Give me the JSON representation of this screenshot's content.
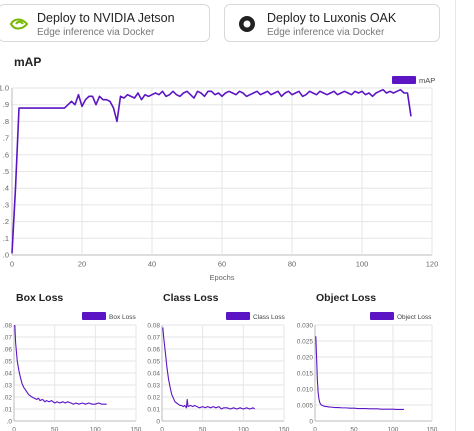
{
  "cards": [
    {
      "title": "Deploy to NVIDIA Jetson",
      "subtitle": "Edge inference via Docker",
      "icon": "nvidia-icon"
    },
    {
      "title": "Deploy to Luxonis OAK",
      "subtitle": "Edge inference via Docker",
      "icon": "luxonis-icon"
    }
  ],
  "colors": {
    "series": "#5b15c4"
  },
  "chart_data": [
    {
      "type": "line",
      "title": "mAP",
      "xlabel": "Epochs",
      "ylabel": "",
      "legend": "top-right",
      "grid": true,
      "xlim": [
        0,
        120
      ],
      "ylim": [
        0,
        1.0
      ],
      "xticks": [
        "0",
        "20",
        "40",
        "60",
        "80",
        "100",
        "120"
      ],
      "yticks": [
        ".0",
        ".1",
        ".2",
        ".3",
        ".4",
        ".5",
        ".6",
        ".7",
        ".8",
        ".9",
        "1.0"
      ],
      "series": [
        {
          "name": "mAP",
          "points": [
            [
              0,
              0.01
            ],
            [
              1,
              0.4
            ],
            [
              2,
              0.88
            ],
            [
              3,
              0.88
            ],
            [
              5,
              0.88
            ],
            [
              8,
              0.88
            ],
            [
              10,
              0.88
            ],
            [
              12,
              0.88
            ],
            [
              14,
              0.88
            ],
            [
              15,
              0.88
            ],
            [
              16,
              0.9
            ],
            [
              17,
              0.92
            ],
            [
              18,
              0.9
            ],
            [
              19,
              0.96
            ],
            [
              20,
              0.89
            ],
            [
              21,
              0.93
            ],
            [
              22,
              0.95
            ],
            [
              23,
              0.95
            ],
            [
              24,
              0.9
            ],
            [
              25,
              0.95
            ],
            [
              26,
              0.93
            ],
            [
              27,
              0.93
            ],
            [
              28,
              0.92
            ],
            [
              29,
              0.88
            ],
            [
              30,
              0.8
            ],
            [
              31,
              0.95
            ],
            [
              32,
              0.94
            ],
            [
              33,
              0.96
            ],
            [
              34,
              0.95
            ],
            [
              35,
              0.94
            ],
            [
              36,
              0.97
            ],
            [
              37,
              0.93
            ],
            [
              38,
              0.96
            ],
            [
              39,
              0.95
            ],
            [
              40,
              0.96
            ],
            [
              41,
              0.97
            ],
            [
              42,
              0.96
            ],
            [
              43,
              0.98
            ],
            [
              44,
              0.95
            ],
            [
              45,
              0.96
            ],
            [
              46,
              0.98
            ],
            [
              47,
              0.96
            ],
            [
              48,
              0.95
            ],
            [
              49,
              0.97
            ],
            [
              50,
              0.98
            ],
            [
              51,
              0.96
            ],
            [
              52,
              0.94
            ],
            [
              53,
              0.98
            ],
            [
              54,
              0.97
            ],
            [
              55,
              0.95
            ],
            [
              56,
              0.98
            ],
            [
              57,
              0.98
            ],
            [
              58,
              0.96
            ],
            [
              59,
              0.97
            ],
            [
              60,
              0.95
            ],
            [
              61,
              0.97
            ],
            [
              62,
              0.98
            ],
            [
              63,
              0.97
            ],
            [
              64,
              0.96
            ],
            [
              65,
              0.98
            ],
            [
              66,
              0.97
            ],
            [
              67,
              0.95
            ],
            [
              68,
              0.96
            ],
            [
              69,
              0.97
            ],
            [
              70,
              0.98
            ],
            [
              71,
              0.96
            ],
            [
              72,
              0.97
            ],
            [
              73,
              0.98
            ],
            [
              74,
              0.96
            ],
            [
              75,
              0.97
            ],
            [
              76,
              0.98
            ],
            [
              77,
              0.95
            ],
            [
              78,
              0.97
            ],
            [
              79,
              0.98
            ],
            [
              80,
              0.96
            ],
            [
              81,
              0.97
            ],
            [
              82,
              0.98
            ],
            [
              83,
              0.95
            ],
            [
              84,
              0.96
            ],
            [
              85,
              0.98
            ],
            [
              86,
              0.97
            ],
            [
              87,
              0.96
            ],
            [
              88,
              0.98
            ],
            [
              89,
              0.97
            ],
            [
              90,
              0.96
            ],
            [
              91,
              0.97
            ],
            [
              92,
              0.98
            ],
            [
              93,
              0.96
            ],
            [
              94,
              0.97
            ],
            [
              95,
              0.98
            ],
            [
              96,
              0.97
            ],
            [
              97,
              0.96
            ],
            [
              98,
              0.98
            ],
            [
              99,
              0.97
            ],
            [
              100,
              0.98
            ],
            [
              101,
              0.96
            ],
            [
              102,
              0.97
            ],
            [
              103,
              0.95
            ],
            [
              104,
              0.97
            ],
            [
              105,
              0.98
            ],
            [
              106,
              0.99
            ],
            [
              107,
              0.97
            ],
            [
              108,
              0.98
            ],
            [
              109,
              0.97
            ],
            [
              110,
              0.98
            ],
            [
              111,
              0.99
            ],
            [
              112,
              0.97
            ],
            [
              113,
              0.97
            ],
            [
              114,
              0.83
            ]
          ]
        }
      ]
    },
    {
      "type": "line",
      "title": "Box Loss",
      "xlabel": "",
      "legend": "top-right",
      "grid": true,
      "xlim": [
        0,
        150
      ],
      "ylim": [
        0,
        0.08
      ],
      "xticks": [
        "0",
        "50",
        "100",
        "150"
      ],
      "yticks": [
        ".0",
        ".01",
        ".02",
        ".03",
        ".04",
        ".05",
        ".06",
        ".07",
        ".08"
      ],
      "series": [
        {
          "name": "Box Loss",
          "points": [
            [
              1,
              0.08
            ],
            [
              2,
              0.065
            ],
            [
              4,
              0.05
            ],
            [
              6,
              0.042
            ],
            [
              8,
              0.036
            ],
            [
              10,
              0.031
            ],
            [
              12,
              0.028
            ],
            [
              14,
              0.026
            ],
            [
              16,
              0.024
            ],
            [
              18,
              0.022
            ],
            [
              20,
              0.021
            ],
            [
              22,
              0.02
            ],
            [
              25,
              0.019
            ],
            [
              28,
              0.018
            ],
            [
              30,
              0.019
            ],
            [
              32,
              0.017
            ],
            [
              35,
              0.018
            ],
            [
              38,
              0.016
            ],
            [
              40,
              0.017
            ],
            [
              43,
              0.016
            ],
            [
              46,
              0.017
            ],
            [
              50,
              0.015
            ],
            [
              53,
              0.016
            ],
            [
              56,
              0.015
            ],
            [
              60,
              0.016
            ],
            [
              63,
              0.015
            ],
            [
              66,
              0.016
            ],
            [
              70,
              0.015
            ],
            [
              73,
              0.014
            ],
            [
              76,
              0.015
            ],
            [
              80,
              0.014
            ],
            [
              84,
              0.015
            ],
            [
              88,
              0.014
            ],
            [
              92,
              0.015
            ],
            [
              96,
              0.014
            ],
            [
              100,
              0.014
            ],
            [
              104,
              0.015
            ],
            [
              108,
              0.014
            ],
            [
              112,
              0.014
            ],
            [
              114,
              0.014
            ]
          ]
        }
      ]
    },
    {
      "type": "line",
      "title": "Class Loss",
      "xlabel": "",
      "legend": "top-right",
      "grid": true,
      "xlim": [
        0,
        150
      ],
      "ylim": [
        0,
        0.08
      ],
      "xticks": [
        "0",
        "50",
        "100",
        "150"
      ],
      "yticks": [
        "0",
        "0.01",
        "0.02",
        "0.03",
        "0.04",
        "0.05",
        "0.06",
        "0.07",
        "0.08"
      ],
      "series": [
        {
          "name": "Class Loss",
          "points": [
            [
              1,
              0.078
            ],
            [
              2,
              0.07
            ],
            [
              4,
              0.058
            ],
            [
              6,
              0.045
            ],
            [
              8,
              0.035
            ],
            [
              10,
              0.028
            ],
            [
              12,
              0.022
            ],
            [
              14,
              0.019
            ],
            [
              16,
              0.016
            ],
            [
              18,
              0.015
            ],
            [
              20,
              0.014
            ],
            [
              22,
              0.013
            ],
            [
              24,
              0.013
            ],
            [
              26,
              0.012
            ],
            [
              28,
              0.013
            ],
            [
              30,
              0.011
            ],
            [
              31,
              0.018
            ],
            [
              32,
              0.012
            ],
            [
              35,
              0.013
            ],
            [
              38,
              0.012
            ],
            [
              40,
              0.013
            ],
            [
              43,
              0.012
            ],
            [
              46,
              0.011
            ],
            [
              50,
              0.012
            ],
            [
              53,
              0.011
            ],
            [
              56,
              0.012
            ],
            [
              60,
              0.011
            ],
            [
              63,
              0.012
            ],
            [
              66,
              0.011
            ],
            [
              70,
              0.012
            ],
            [
              73,
              0.01
            ],
            [
              76,
              0.011
            ],
            [
              80,
              0.011
            ],
            [
              84,
              0.01
            ],
            [
              88,
              0.011
            ],
            [
              92,
              0.01
            ],
            [
              96,
              0.011
            ],
            [
              100,
              0.01
            ],
            [
              104,
              0.011
            ],
            [
              108,
              0.01
            ],
            [
              112,
              0.011
            ],
            [
              114,
              0.01
            ]
          ]
        }
      ]
    },
    {
      "type": "line",
      "title": "Object Loss",
      "xlabel": "",
      "legend": "top-right",
      "grid": true,
      "xlim": [
        0,
        150
      ],
      "ylim": [
        0,
        0.03
      ],
      "xticks": [
        "0",
        "50",
        "100",
        "150"
      ],
      "yticks": [
        "0",
        "0.005",
        "0.010",
        "0.015",
        "0.020",
        "0.025",
        "0.030"
      ],
      "series": [
        {
          "name": "Object Loss",
          "points": [
            [
              1,
              0.0265
            ],
            [
              2,
              0.02
            ],
            [
              3,
              0.013
            ],
            [
              4,
              0.009
            ],
            [
              5,
              0.007
            ],
            [
              6,
              0.0058
            ],
            [
              8,
              0.005
            ],
            [
              10,
              0.0048
            ],
            [
              12,
              0.0046
            ],
            [
              15,
              0.0045
            ],
            [
              18,
              0.0044
            ],
            [
              22,
              0.0043
            ],
            [
              26,
              0.0042
            ],
            [
              30,
              0.0042
            ],
            [
              35,
              0.0041
            ],
            [
              40,
              0.0041
            ],
            [
              45,
              0.004
            ],
            [
              50,
              0.004
            ],
            [
              55,
              0.0039
            ],
            [
              60,
              0.0039
            ],
            [
              65,
              0.0039
            ],
            [
              70,
              0.0038
            ],
            [
              75,
              0.0038
            ],
            [
              80,
              0.0038
            ],
            [
              85,
              0.0037
            ],
            [
              90,
              0.0037
            ],
            [
              95,
              0.0037
            ],
            [
              100,
              0.0037
            ],
            [
              105,
              0.0036
            ],
            [
              110,
              0.0036
            ],
            [
              114,
              0.0036
            ]
          ]
        }
      ]
    }
  ]
}
